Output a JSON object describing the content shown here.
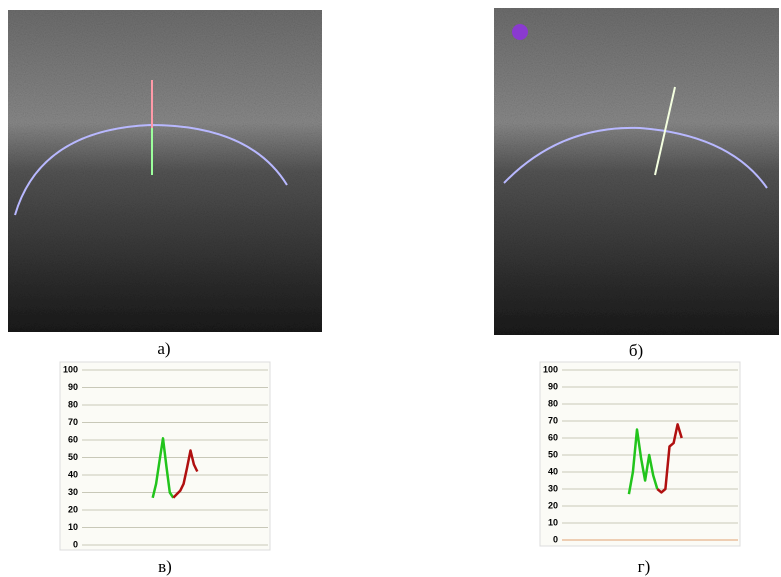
{
  "panel_labels": [
    "а)",
    "б)",
    "в)",
    "г)"
  ],
  "chart_data": [
    {
      "type": "line",
      "ylim": [
        0,
        100
      ],
      "yticks": [
        0,
        10,
        20,
        30,
        40,
        50,
        60,
        70,
        80,
        90,
        100
      ],
      "grid": true,
      "categories": [
        null,
        null,
        null,
        null,
        null,
        null,
        null,
        null,
        null,
        null,
        null,
        null,
        null,
        null
      ],
      "series": [
        {
          "color": "#22c41c",
          "values": [
            27,
            35,
            48,
            61,
            45,
            30,
            27,
            null,
            null,
            null,
            null,
            null,
            null,
            null
          ]
        },
        {
          "color": "#b01010",
          "values": [
            null,
            null,
            null,
            null,
            null,
            null,
            27,
            29,
            31,
            35,
            44,
            54,
            46,
            42
          ]
        }
      ]
    },
    {
      "type": "line",
      "ylim": [
        0,
        100
      ],
      "yticks": [
        0,
        10,
        20,
        30,
        40,
        50,
        60,
        70,
        80,
        90,
        100
      ],
      "grid": true,
      "categories": [
        null,
        null,
        null,
        null,
        null,
        null,
        null,
        null,
        null,
        null,
        null,
        null,
        null,
        null
      ],
      "series": [
        {
          "color": "#22c41c",
          "values": [
            27,
            40,
            65,
            48,
            35,
            50,
            38,
            30,
            null,
            null,
            null,
            null,
            null,
            null
          ]
        },
        {
          "color": "#b01010",
          "values": [
            null,
            null,
            null,
            null,
            null,
            null,
            null,
            30,
            28,
            30,
            55,
            57,
            68,
            60
          ]
        }
      ]
    }
  ]
}
